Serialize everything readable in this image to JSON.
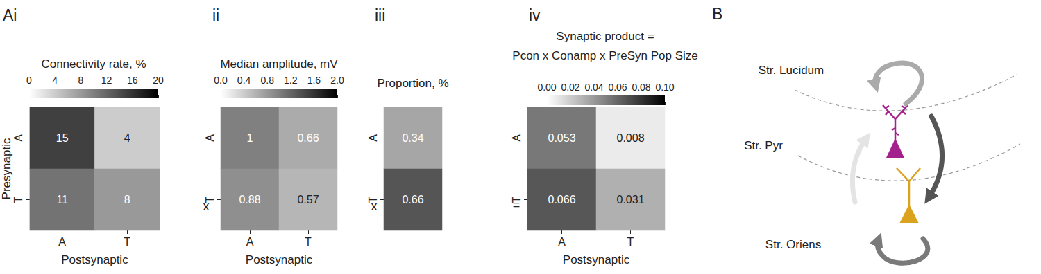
{
  "panels_order": [
    "Ai",
    "ii",
    "iii",
    "iv"
  ],
  "operators": [
    "x",
    "x",
    "="
  ],
  "chart_data": [
    {
      "type": "heatmap",
      "panel": "Ai",
      "title": "Connectivity rate, %",
      "x_label": "Postsynaptic",
      "y_label": "Presynaptic",
      "categories": [
        "A",
        "T"
      ],
      "y_categories": [
        "A",
        "T"
      ],
      "cells": [
        [
          15,
          4
        ],
        [
          11,
          8
        ]
      ],
      "color_range": [
        0,
        20
      ],
      "color_ticks": [
        0,
        4,
        8,
        12,
        16,
        20
      ],
      "data_labels": true
    },
    {
      "type": "heatmap",
      "panel": "ii",
      "title": "Median amplitude, mV",
      "x_label": "Postsynaptic",
      "categories": [
        "A",
        "T"
      ],
      "y_categories": [
        "A",
        "T"
      ],
      "cells": [
        [
          1,
          0.66
        ],
        [
          0.88,
          0.57
        ]
      ],
      "color_range": [
        0,
        2
      ],
      "color_ticks": [
        {
          "value": 0,
          "label": "0.0"
        },
        0.4,
        0.8,
        1.2,
        1.6,
        {
          "value": 2,
          "label": "2.0"
        }
      ],
      "data_labels": true
    },
    {
      "type": "heatmap",
      "panel": "iii",
      "title": "Proportion, %",
      "categories": [
        null
      ],
      "y_categories": [
        "A",
        "T"
      ],
      "cells": [
        [
          0.34
        ],
        [
          0.66
        ]
      ],
      "colors": [
        "#a6a6a6",
        "#555555"
      ],
      "data_labels": true
    },
    {
      "type": "heatmap",
      "panel": "iv",
      "title": "Synaptic product =",
      "subtitle": "Pcon x Conamp x PreSyn Pop Size",
      "x_label": "Postsynaptic",
      "categories": [
        "A",
        "T"
      ],
      "y_categories": [
        "A",
        "T"
      ],
      "cells": [
        [
          0.053,
          0.008
        ],
        [
          0.066,
          0.031
        ]
      ],
      "color_range": [
        0,
        0.1
      ],
      "color_ticks": [
        {
          "value": 0,
          "label": "0.00"
        },
        {
          "value": 0.02,
          "label": "0.02"
        },
        {
          "value": 0.04,
          "label": "0.04"
        },
        {
          "value": 0.06,
          "label": "0.06"
        },
        {
          "value": 0.08,
          "label": "0.08"
        },
        {
          "value": 0.1,
          "label": "0.10"
        }
      ],
      "data_labels": true
    }
  ],
  "diagram": {
    "panel": "B",
    "labels": [
      "Str. Lucidum",
      "Str. Pyr",
      "Str. Oriens"
    ]
  }
}
